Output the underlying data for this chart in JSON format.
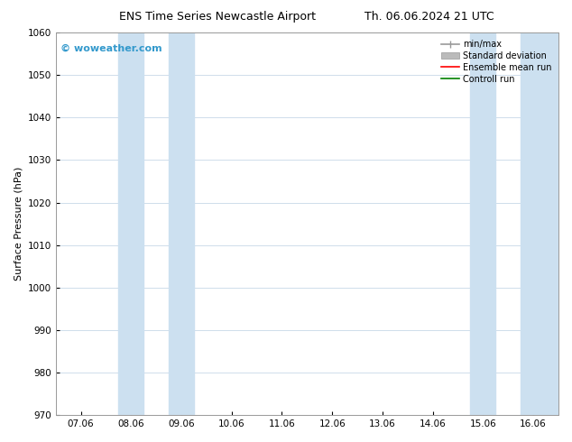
{
  "title_left": "ENS Time Series Newcastle Airport",
  "title_right": "Th. 06.06.2024 21 UTC",
  "ylabel": "Surface Pressure (hPa)",
  "ylim": [
    970,
    1060
  ],
  "yticks": [
    970,
    980,
    990,
    1000,
    1010,
    1020,
    1030,
    1040,
    1050,
    1060
  ],
  "x_labels": [
    "07.06",
    "08.06",
    "09.06",
    "10.06",
    "11.06",
    "12.06",
    "13.06",
    "14.06",
    "15.06",
    "16.06"
  ],
  "x_positions": [
    0,
    1,
    2,
    3,
    4,
    5,
    6,
    7,
    8,
    9
  ],
  "xlim": [
    -0.5,
    9.5
  ],
  "shaded_bands": [
    {
      "x_start": 0.75,
      "x_end": 1.25,
      "color": "#cce0f0"
    },
    {
      "x_start": 1.75,
      "x_end": 2.25,
      "color": "#cce0f0"
    },
    {
      "x_start": 7.75,
      "x_end": 8.25,
      "color": "#cce0f0"
    },
    {
      "x_start": 8.75,
      "x_end": 9.5,
      "color": "#cce0f0"
    }
  ],
  "watermark_text": "© woweather.com",
  "watermark_color": "#3399cc",
  "watermark_fontsize": 8,
  "legend_entries": [
    {
      "label": "min/max",
      "color": "#999999"
    },
    {
      "label": "Standard deviation",
      "color": "#bbbbbb"
    },
    {
      "label": "Ensemble mean run",
      "color": "red"
    },
    {
      "label": "Controll run",
      "color": "green"
    }
  ],
  "background_color": "#ffffff",
  "grid_color": "#c8d8e8",
  "title_fontsize": 9,
  "axis_label_fontsize": 8,
  "tick_fontsize": 7.5,
  "legend_fontsize": 7
}
